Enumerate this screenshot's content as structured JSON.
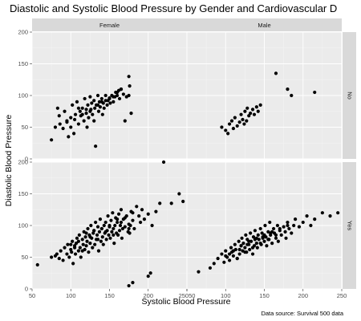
{
  "chart_data": {
    "type": "scatter",
    "title": "Diastolic and Systolic Blood Pressure by Gender and Cardiovascular D",
    "xlabel": "Systolic Blood Pressure",
    "ylabel": "Diastolic Blood Pressure",
    "caption": "Data source: Survival 500 data",
    "xlim": [
      50,
      250
    ],
    "ylim": [
      0,
      200
    ],
    "xticks": [
      50,
      100,
      150,
      200,
      250
    ],
    "yticks": [
      0,
      50,
      100,
      150,
      200
    ],
    "x_tick_labels_left": [
      "50",
      "100",
      "150",
      "200",
      "250"
    ],
    "x_tick_labels_right": [
      "",
      "100",
      "150",
      "200",
      "250"
    ],
    "x_tick_label_joined": "25050",
    "y_tick_labels": [
      "0",
      "50",
      "100",
      "150",
      "200"
    ],
    "grid": true,
    "point_color": "#000000",
    "col_facets": [
      "Female",
      "Male"
    ],
    "row_facets": [
      "No",
      "Yes"
    ],
    "panels": [
      {
        "col": "Female",
        "row": "No",
        "x": [
          75,
          80,
          83,
          86,
          90,
          92,
          95,
          97,
          100,
          102,
          104,
          106,
          108,
          110,
          112,
          113,
          115,
          117,
          118,
          120,
          121,
          122,
          123,
          125,
          126,
          127,
          128,
          130,
          131,
          132,
          133,
          135,
          136,
          137,
          138,
          140,
          141,
          142,
          143,
          145,
          147,
          148,
          150,
          151,
          153,
          155,
          157,
          158,
          160,
          162,
          163,
          165,
          168,
          170,
          172,
          175,
          176,
          178,
          130,
          100,
          85,
          95,
          110,
          125,
          140,
          150,
          160,
          175,
          105,
          115,
          120,
          135,
          145,
          155,
          165
        ],
        "y": [
          30,
          50,
          80,
          55,
          48,
          75,
          60,
          35,
          65,
          85,
          40,
          70,
          90,
          55,
          75,
          68,
          80,
          60,
          95,
          72,
          50,
          85,
          65,
          98,
          78,
          88,
          70,
          92,
          80,
          20,
          85,
          100,
          75,
          90,
          82,
          95,
          70,
          88,
          80,
          100,
          85,
          92,
          95,
          88,
          100,
          90,
          98,
          105,
          100,
          108,
          95,
          110,
          102,
          60,
          98,
          130,
          115,
          72,
          60,
          50,
          68,
          58,
          80,
          75,
          90,
          96,
          105,
          100,
          62,
          70,
          78,
          85,
          92,
          98,
          110
        ]
      },
      {
        "col": "Male",
        "row": "No",
        "x": [
          95,
          100,
          103,
          105,
          108,
          110,
          112,
          115,
          118,
          120,
          122,
          124,
          125,
          127,
          128,
          130,
          132,
          135,
          137,
          140,
          142,
          145,
          165,
          180,
          185,
          215
        ],
        "y": [
          50,
          45,
          40,
          55,
          60,
          48,
          65,
          52,
          58,
          70,
          62,
          55,
          75,
          60,
          80,
          68,
          72,
          78,
          70,
          82,
          75,
          85,
          135,
          110,
          100,
          105
        ]
      },
      {
        "col": "Female",
        "row": "Yes",
        "x": [
          57,
          75,
          80,
          82,
          85,
          87,
          90,
          92,
          95,
          96,
          98,
          100,
          101,
          102,
          103,
          105,
          106,
          107,
          108,
          110,
          111,
          112,
          113,
          115,
          116,
          117,
          118,
          119,
          120,
          121,
          122,
          123,
          124,
          125,
          126,
          127,
          128,
          129,
          130,
          131,
          132,
          133,
          134,
          135,
          136,
          137,
          138,
          139,
          140,
          141,
          142,
          143,
          144,
          145,
          146,
          147,
          148,
          149,
          150,
          151,
          152,
          153,
          154,
          155,
          156,
          157,
          158,
          159,
          160,
          161,
          162,
          163,
          164,
          165,
          166,
          167,
          168,
          170,
          172,
          174,
          175,
          176,
          177,
          178,
          180,
          182,
          185,
          188,
          190,
          192,
          195,
          200,
          205,
          210,
          215,
          220,
          230,
          240,
          245,
          100,
          120,
          140,
          160,
          180,
          110,
          130,
          150,
          170,
          105,
          125,
          145,
          165,
          115,
          135,
          155,
          175,
          200,
          203,
          175,
          180
        ],
        "y": [
          38,
          50,
          52,
          55,
          48,
          60,
          45,
          65,
          55,
          70,
          50,
          62,
          58,
          75,
          40,
          68,
          55,
          72,
          80,
          60,
          85,
          65,
          50,
          78,
          70,
          90,
          62,
          82,
          68,
          75,
          95,
          58,
          85,
          72,
          100,
          80,
          65,
          88,
          92,
          70,
          105,
          78,
          85,
          98,
          60,
          90,
          110,
          75,
          95,
          82,
          70,
          100,
          88,
          105,
          78,
          92,
          115,
          85,
          98,
          80,
          108,
          90,
          120,
          95,
          72,
          100,
          112,
          88,
          105,
          85,
          118,
          92,
          100,
          125,
          80,
          95,
          110,
          98,
          115,
          90,
          102,
          88,
          100,
          122,
          108,
          95,
          130,
          115,
          105,
          125,
          110,
          118,
          100,
          122,
          135,
          200,
          135,
          150,
          138,
          70,
          88,
          95,
          110,
          120,
          75,
          92,
          100,
          112,
          65,
          82,
          90,
          105,
          60,
          78,
          85,
          95,
          20,
          25,
          5,
          10
        ]
      },
      {
        "col": "Male",
        "row": "Yes",
        "x": [
          65,
          80,
          85,
          90,
          95,
          98,
          100,
          102,
          105,
          107,
          108,
          110,
          112,
          113,
          115,
          117,
          118,
          120,
          121,
          122,
          123,
          125,
          126,
          127,
          128,
          130,
          131,
          132,
          133,
          135,
          136,
          137,
          138,
          140,
          141,
          142,
          143,
          145,
          146,
          147,
          148,
          150,
          151,
          152,
          153,
          155,
          156,
          157,
          158,
          160,
          162,
          163,
          165,
          167,
          168,
          170,
          172,
          175,
          177,
          178,
          180,
          182,
          185,
          188,
          190,
          195,
          200,
          205,
          210,
          215,
          225,
          235,
          245,
          100,
          110,
          120,
          130,
          140,
          150,
          160,
          170,
          180,
          115,
          125,
          135,
          145,
          155,
          165,
          105,
          118,
          128,
          138,
          148,
          158
        ],
        "y": [
          27,
          33,
          40,
          48,
          55,
          42,
          60,
          50,
          45,
          65,
          58,
          52,
          70,
          62,
          48,
          75,
          55,
          68,
          80,
          60,
          72,
          65,
          85,
          58,
          78,
          70,
          62,
          88,
          75,
          55,
          82,
          68,
          92,
          72,
          65,
          85,
          78,
          95,
          70,
          88,
          80,
          75,
          100,
          82,
          68,
          90,
          78,
          105,
          85,
          72,
          95,
          88,
          80,
          100,
          75,
          92,
          85,
          98,
          90,
          80,
          105,
          95,
          88,
          100,
          110,
          98,
          105,
          115,
          100,
          110,
          120,
          115,
          120,
          52,
          60,
          68,
          75,
          80,
          85,
          90,
          95,
          100,
          48,
          58,
          65,
          72,
          78,
          85,
          55,
          62,
          70,
          78,
          82,
          88
        ]
      }
    ]
  }
}
